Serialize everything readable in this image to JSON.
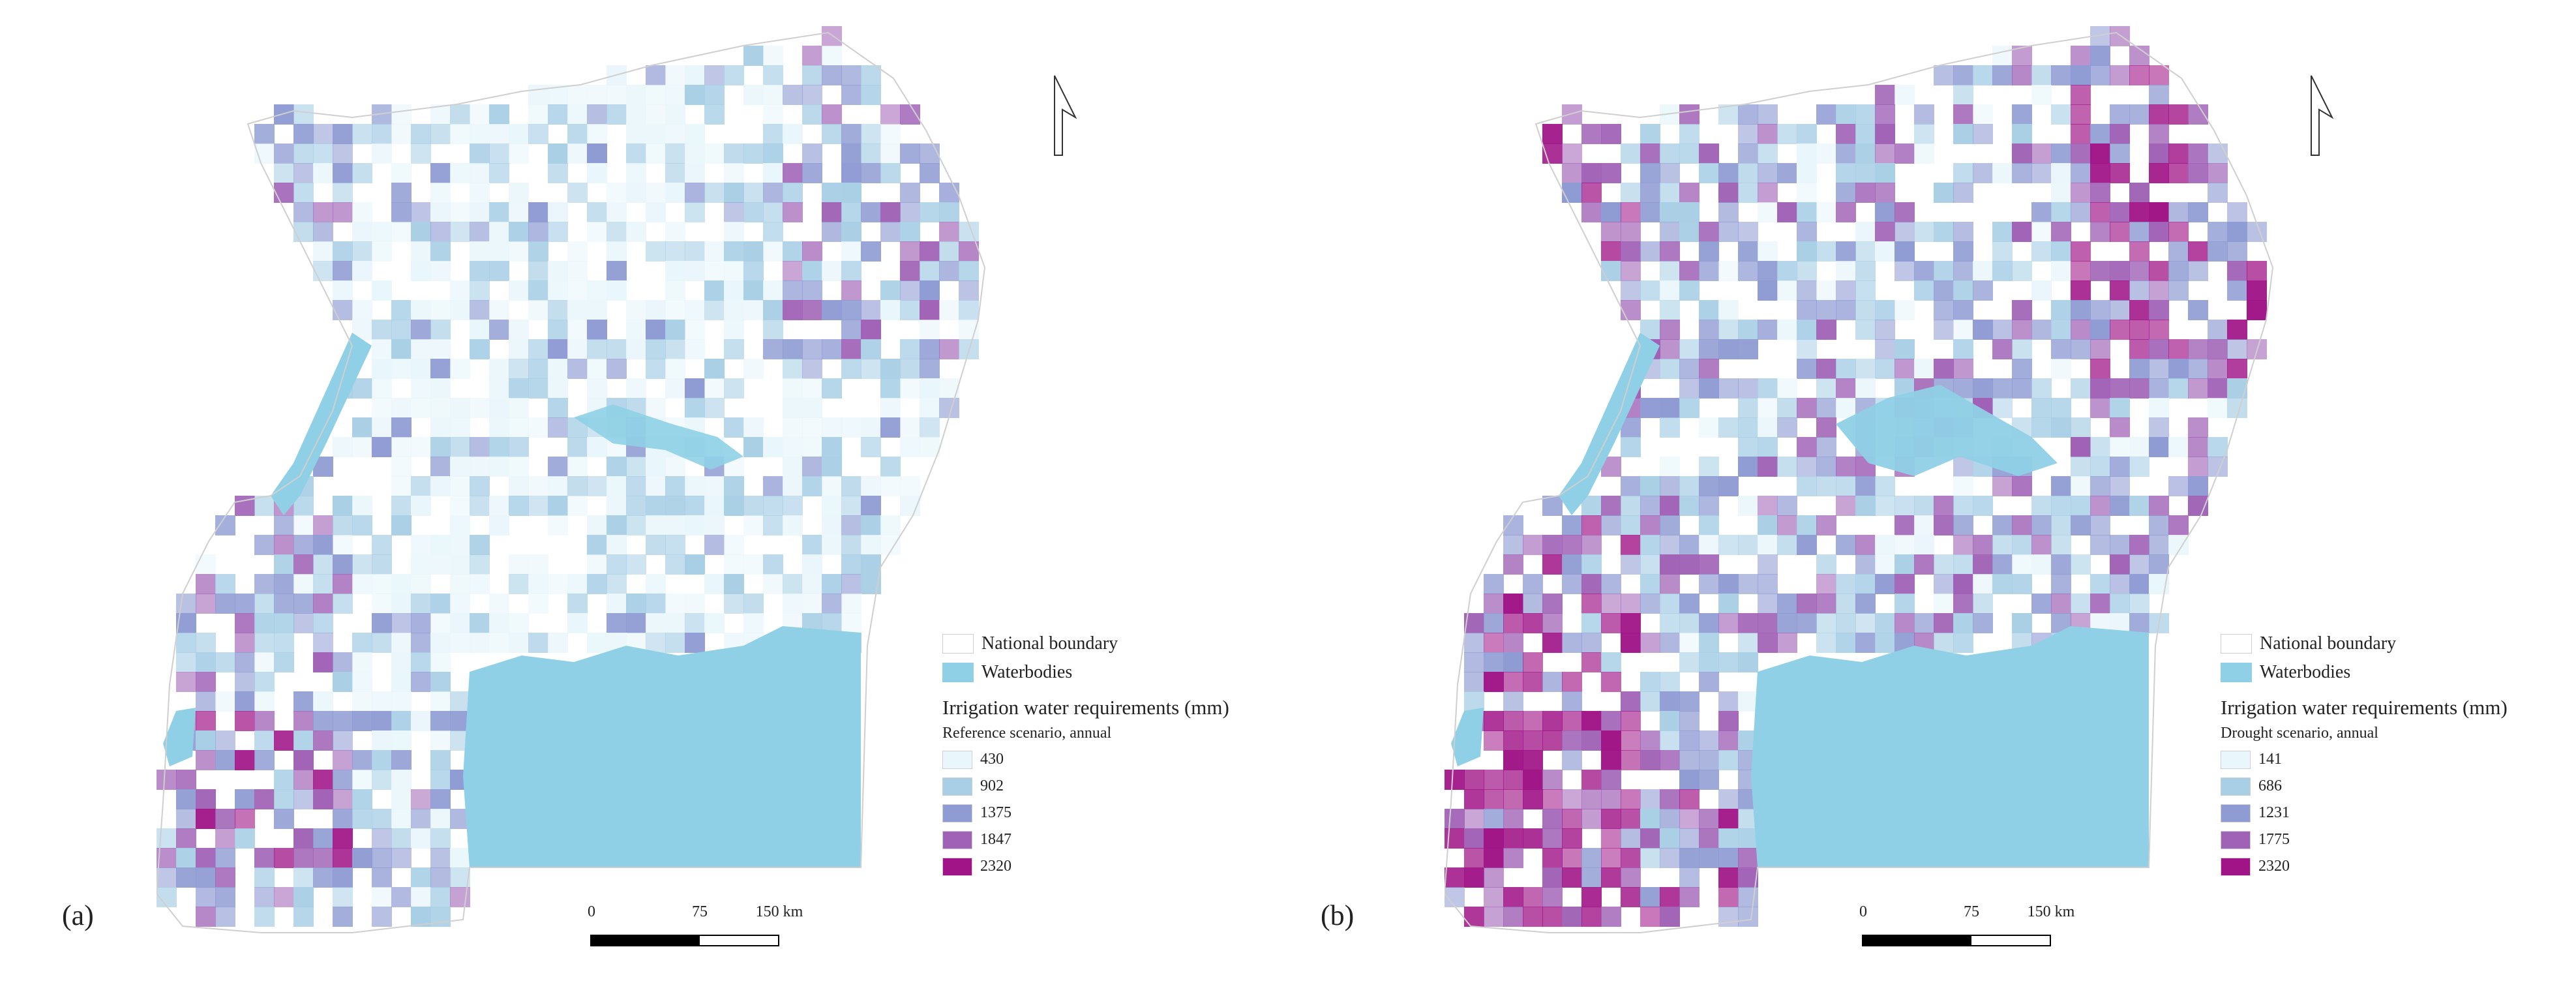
{
  "colors": {
    "waterbody": "#8fd0e6",
    "boundary": "#cfcfcf",
    "background": "#ffffff"
  },
  "common": {
    "legend_boundary": "National boundary",
    "legend_water": "Waterbodies",
    "legend_title": "Irrigation water requirements (mm)",
    "scale_ticks": [
      "0",
      "75",
      "150 km"
    ]
  },
  "panels": [
    {
      "id": "a",
      "label": "(a)",
      "subtitle": "Reference scenario, annual",
      "classes": [
        {
          "value": "430",
          "color": "#e9f6fb"
        },
        {
          "value": "902",
          "color": "#a9cfe6"
        },
        {
          "value": "1375",
          "color": "#8f9bd3"
        },
        {
          "value": "1847",
          "color": "#a062b6"
        },
        {
          "value": "2320",
          "color": "#a01487"
        }
      ],
      "intensity": 0.35
    },
    {
      "id": "b",
      "label": "(b)",
      "subtitle": "Drought scenario, annual",
      "classes": [
        {
          "value": "141",
          "color": "#e9f6fb"
        },
        {
          "value": "686",
          "color": "#a9cfe6"
        },
        {
          "value": "1231",
          "color": "#8f9bd3"
        },
        {
          "value": "1775",
          "color": "#a062b6"
        },
        {
          "value": "2320",
          "color": "#a01487"
        }
      ],
      "intensity": 0.75
    }
  ]
}
